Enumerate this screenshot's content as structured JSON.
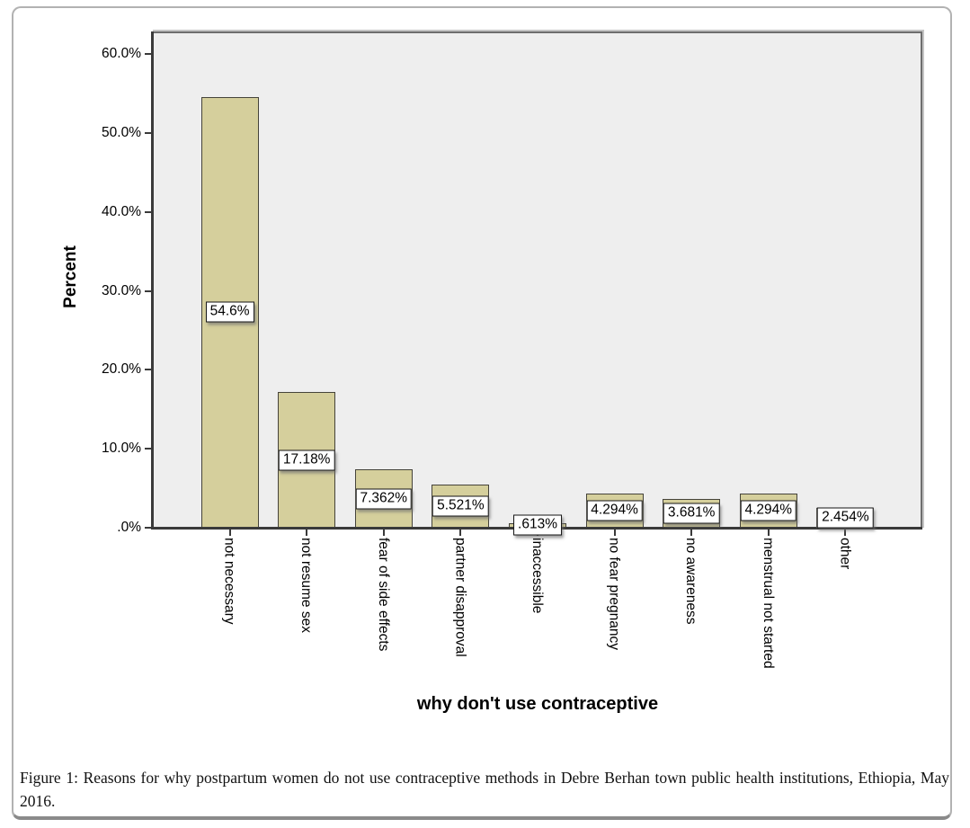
{
  "figure": {
    "caption_label": "Figure 1:",
    "caption_text": " Reasons for why postpartum women do not use contraceptive methods in Debre Berhan town public health institutions, Ethiopia, May 2016."
  },
  "chart_data": {
    "type": "bar",
    "title": "",
    "xlabel": "why don't use contraceptive",
    "ylabel": "Percent",
    "categories": [
      "not necessary",
      "not resume sex",
      "fear of side effects",
      "partner disapproval",
      "inaccessible",
      "no fear pregnancy",
      "no awareness",
      "menstrual not started",
      "other"
    ],
    "values": [
      54.6,
      17.18,
      7.362,
      5.521,
      0.613,
      4.294,
      3.681,
      4.294,
      2.454
    ],
    "value_labels": [
      "54.6%",
      "17.18%",
      "7.362%",
      "5.521%",
      ".613%",
      "4.294%",
      "3.681%",
      "4.294%",
      "2.454%"
    ],
    "yticks": [
      0,
      10,
      20,
      30,
      40,
      50,
      60
    ],
    "ytick_labels": [
      ".0%",
      "10.0%",
      "20.0%",
      "30.0%",
      "40.0%",
      "50.0%",
      "60.0%"
    ],
    "ylim": [
      0,
      62.9
    ],
    "grid": false,
    "legend": "none",
    "bar_color": "#d5cf9c",
    "bar_border_color": "#45433a",
    "plot_bg": "#eeeeee",
    "axis_color": "#3a3a3a"
  }
}
